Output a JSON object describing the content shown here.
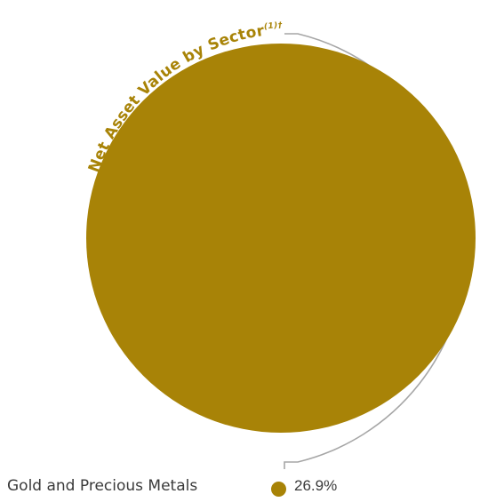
{
  "chart_data": {
    "type": "pie",
    "title": "Net Asset Value by Sector",
    "title_superscript": "(1)†",
    "categories": [
      "Gold and Precious Metals"
    ],
    "values": [
      26.9
    ],
    "value_labels": [
      "26.9%"
    ],
    "colors": [
      "#a88307"
    ],
    "arc_color": "#a6a6a6",
    "legend_position": "bottom-left"
  }
}
